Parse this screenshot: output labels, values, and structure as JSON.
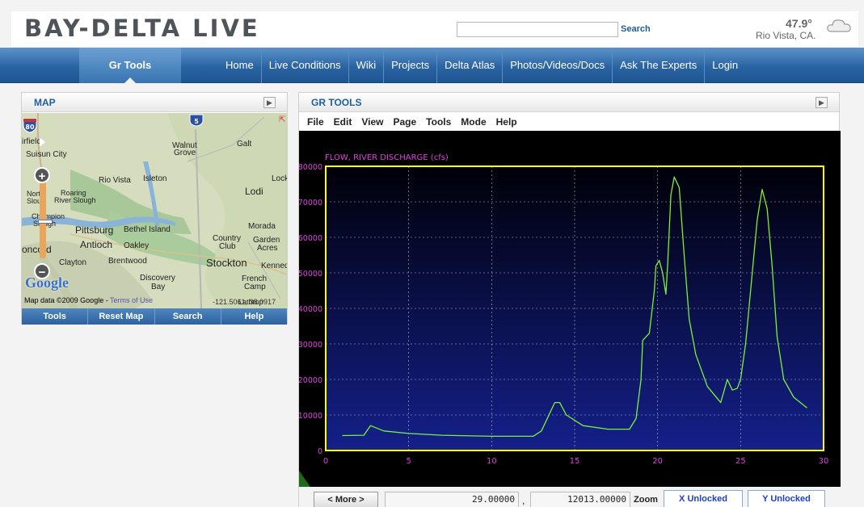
{
  "header": {
    "logo": "BAY-DELTA LIVE",
    "search_label": "Search",
    "search_placeholder": "",
    "weather": {
      "temp": "47.9°",
      "location": "Rio Vista, CA."
    }
  },
  "nav": {
    "active": "Gr Tools",
    "items": [
      "Home",
      "Live Conditions",
      "Wiki",
      "Projects",
      "Delta Atlas",
      "Photos/Videos/Docs",
      "Ask The Experts",
      "Login"
    ]
  },
  "map_panel": {
    "title": "MAP",
    "labels": [
      "Suisun City",
      "Walnut",
      "Grove",
      "Galt",
      "Rio Vista",
      "Isleton",
      "Lodi",
      "Lock",
      "Roaring",
      "River Slough",
      "Nort",
      "Slou",
      "Champion",
      "Slough",
      "Pittsburg",
      "Bethel Island",
      "Antioch",
      "Oakley",
      "Morada",
      "Country",
      "Club",
      "Garden",
      "Acres",
      "oncord",
      "Clayton",
      "Brentwood",
      "Stockton",
      "Kenned",
      "Discovery",
      "Bay",
      "French",
      "Camp",
      "irfield",
      "Lathrop"
    ],
    "highways": [
      "80",
      "5"
    ],
    "attribution": "Map data ©2009 Google - ",
    "terms": "Terms of Use",
    "coords": "-121.5061, 38.0917",
    "google": "Google",
    "footer_buttons": [
      "Tools",
      "Reset Map",
      "Search",
      "Help"
    ]
  },
  "gr_panel": {
    "title": "GR TOOLS",
    "menu": [
      "File",
      "Edit",
      "View",
      "Page",
      "Tools",
      "Mode",
      "Help"
    ],
    "more_button": "< More >",
    "x_value": "29.00000",
    "y_value": "12013.00000",
    "separator": ",",
    "zoom_label": "Zoom",
    "x_lock": "X Unlocked",
    "y_lock": "Y Unlocked"
  },
  "chart_data": {
    "type": "line",
    "title": "FLOW, RIVER DISCHARGE (cfs)",
    "xlabel": "",
    "ylabel": "",
    "xlim": [
      0,
      30
    ],
    "ylim": [
      0,
      80000
    ],
    "xticks": [
      0,
      5,
      10,
      15,
      20,
      25,
      30
    ],
    "yticks": [
      0,
      10000,
      20000,
      30000,
      40000,
      50000,
      60000,
      70000,
      80000
    ],
    "grid": true,
    "colors": {
      "line": "#7cf03a",
      "frame": "#ffff00",
      "tick_text": "#e040e0",
      "title": "#e040e0"
    },
    "series": [
      {
        "x": [
          1.0,
          2.3,
          2.7,
          3.5,
          5.0,
          7.0,
          10.0,
          12.5,
          13.0,
          13.5,
          13.8,
          14.1,
          14.5,
          15.5,
          17.0,
          18.3,
          18.7,
          19.0,
          19.1,
          19.3,
          19.5,
          19.8,
          19.9,
          20.1,
          20.3,
          20.5,
          20.6,
          20.8,
          21.0,
          21.3,
          21.6,
          21.9,
          22.3,
          23.0,
          23.8,
          24.2,
          24.5,
          24.8,
          25.0,
          25.3,
          25.6,
          26.0,
          26.3,
          26.6,
          26.9,
          27.2,
          27.6,
          28.2,
          29.0
        ],
        "y": [
          4200,
          4300,
          7000,
          5500,
          4800,
          4300,
          4000,
          4000,
          5500,
          10500,
          13500,
          13500,
          10000,
          7000,
          6000,
          6000,
          9000,
          20000,
          31000,
          32000,
          33000,
          45000,
          52000,
          53500,
          50000,
          44000,
          52000,
          72000,
          77000,
          74000,
          55000,
          37000,
          27000,
          18000,
          13500,
          20000,
          17000,
          17500,
          20000,
          30000,
          45000,
          65000,
          73500,
          68000,
          52000,
          32000,
          20000,
          15000,
          12000
        ]
      }
    ]
  }
}
